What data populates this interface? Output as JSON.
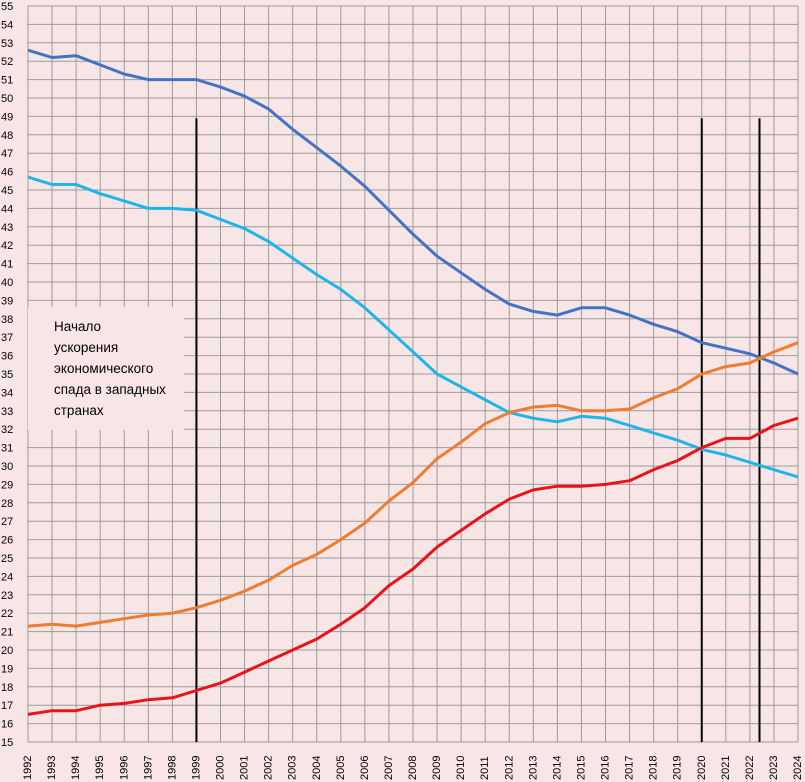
{
  "chart_data": {
    "type": "line",
    "title": "",
    "xlabel": "",
    "ylabel": "",
    "ylim": [
      15,
      55
    ],
    "grid": true,
    "x": [
      1992,
      1993,
      1994,
      1995,
      1996,
      1997,
      1998,
      1999,
      2000,
      2001,
      2002,
      2003,
      2004,
      2005,
      2006,
      2007,
      2008,
      2009,
      2010,
      2011,
      2012,
      2013,
      2014,
      2015,
      2016,
      2017,
      2018,
      2019,
      2020,
      2021,
      2022,
      2023,
      2024
    ],
    "yticks": [
      15,
      16,
      17,
      18,
      19,
      20,
      21,
      22,
      23,
      24,
      25,
      26,
      27,
      28,
      29,
      30,
      31,
      32,
      33,
      34,
      35,
      36,
      37,
      38,
      39,
      40,
      41,
      42,
      43,
      44,
      45,
      46,
      47,
      48,
      49,
      50,
      51,
      52,
      53,
      54,
      55
    ],
    "series": [
      {
        "color": "#4472c4",
        "values": [
          52.6,
          52.2,
          52.3,
          51.8,
          51.3,
          51.0,
          51.0,
          51.0,
          50.6,
          50.1,
          49.4,
          48.3,
          47.3,
          46.3,
          45.2,
          43.9,
          42.6,
          41.4,
          40.5,
          39.6,
          38.8,
          38.4,
          38.2,
          38.6,
          38.6,
          38.2,
          37.7,
          37.3,
          36.7,
          36.4,
          36.1,
          35.6,
          35.0
        ]
      },
      {
        "color": "#1fb5ea",
        "values": [
          45.7,
          45.3,
          45.3,
          44.8,
          44.4,
          44.0,
          44.0,
          43.9,
          43.4,
          42.9,
          42.2,
          41.3,
          40.4,
          39.6,
          38.6,
          37.4,
          36.2,
          35.0,
          34.3,
          33.6,
          32.9,
          32.6,
          32.4,
          32.7,
          32.6,
          32.2,
          31.8,
          31.4,
          30.9,
          30.6,
          30.2,
          29.8,
          29.4
        ]
      },
      {
        "color": "#ed7d31",
        "values": [
          21.3,
          21.4,
          21.3,
          21.5,
          21.7,
          21.9,
          22.0,
          22.3,
          22.7,
          23.2,
          23.8,
          24.6,
          25.2,
          26.0,
          26.9,
          28.1,
          29.1,
          30.4,
          31.3,
          32.3,
          32.9,
          33.2,
          33.3,
          33.0,
          33.0,
          33.1,
          33.7,
          34.2,
          35.0,
          35.4,
          35.6,
          36.2,
          36.7
        ]
      },
      {
        "color": "#e8141c",
        "values": [
          16.5,
          16.7,
          16.7,
          17.0,
          17.1,
          17.3,
          17.4,
          17.8,
          18.2,
          18.8,
          19.4,
          20.0,
          20.6,
          21.4,
          22.3,
          23.5,
          24.4,
          25.6,
          26.5,
          27.4,
          28.2,
          28.7,
          28.9,
          28.9,
          29.0,
          29.2,
          29.8,
          30.3,
          31.0,
          31.5,
          31.5,
          32.2,
          32.6
        ]
      }
    ],
    "vlines": [
      1999,
      2020,
      2022.4
    ],
    "annotation": {
      "x": 1994.5,
      "lines": [
        "Начало",
        "ускорения",
        "экономического",
        "спада в западных",
        "странах"
      ]
    }
  }
}
